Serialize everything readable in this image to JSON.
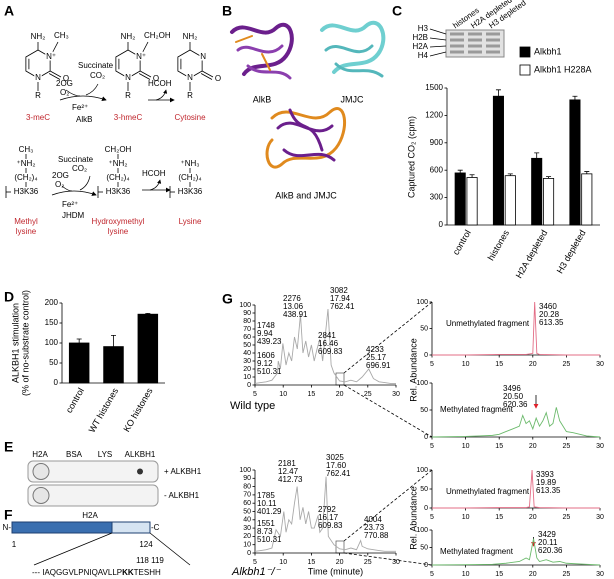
{
  "panel_labels": [
    "A",
    "B",
    "C",
    "D",
    "E",
    "F",
    "G"
  ],
  "panel_A": {
    "dna": {
      "molecules": [
        {
          "amine": "NH₂",
          "substituent": "CH₃",
          "n3": "N⁺",
          "carbonyl": "O",
          "n1": "N",
          "r": "R",
          "name": "3-meC"
        },
        {
          "amine": "NH₂",
          "substituent": "CH₂OH",
          "n3": "N⁺",
          "carbonyl": "O",
          "n1": "N",
          "r": "R",
          "name": "3-hmeC"
        },
        {
          "amine": "NH₂",
          "n3": "N",
          "carbonyl": "O",
          "n1": "N",
          "r": "R",
          "name": "Cytosine"
        }
      ],
      "reaction": {
        "cofactors": [
          "2OG",
          "O₂",
          "Succinate",
          "CO₂",
          "Fe²⁺"
        ],
        "enzyme": "AlkB"
      },
      "release": "HCOH"
    },
    "lysine": {
      "molecules": [
        {
          "groups": [
            "CH₃",
            "⁺NH₂",
            "(CH₂)₄",
            "H3K36"
          ],
          "name": [
            "Methyl",
            "lysine"
          ]
        },
        {
          "groups": [
            "CH₂OH",
            "⁺NH₂",
            "(CH₂)₄",
            "H3K36"
          ],
          "name": [
            "Hydroxymethyl",
            "lysine"
          ]
        },
        {
          "groups": [
            "⁺NH₃",
            "(CH₂)₄",
            "H3K36"
          ],
          "name": [
            "Lysine"
          ]
        }
      ],
      "reaction": {
        "cofactors": [
          "2OG",
          "O₂",
          "Succinate",
          "CO₂",
          "Fe²⁺"
        ],
        "enzyme": "JHDM"
      },
      "release": "HCOH"
    }
  },
  "panel_B": {
    "labels": [
      "AlkB",
      "JMJC",
      "AlkB and JMJC"
    ]
  },
  "panel_C_gel": {
    "lanes": [
      "histones",
      "H2A depleted",
      "H3 depleted"
    ],
    "bands": [
      "H3",
      "H2B",
      "H2A",
      "H4"
    ]
  },
  "panel_E": {
    "columns": [
      "H2A",
      "BSA",
      "LYS",
      "ALKBH1"
    ],
    "rows": [
      "+ ALKBH1",
      "- ALKBH1"
    ]
  },
  "panel_F": {
    "protein": "H2A",
    "n_term": "N-",
    "c_term": "-C",
    "start": 1,
    "end": 124,
    "sites": "118 119",
    "sequence": [
      "--- IAQGGVLPNIQAVLLP",
      "KK",
      "TESHH"
    ]
  },
  "chart_data": [
    {
      "type": "bar",
      "ylabel": "Captured CO₂ (cpm)",
      "categories": [
        "control",
        "histones",
        "H2A depleted",
        "H3 depleted"
      ],
      "series": [
        {
          "name": "Alkbh1",
          "color": "#000000",
          "values": [
            570,
            1410,
            730,
            1370
          ],
          "errors": [
            30,
            70,
            60,
            40
          ]
        },
        {
          "name": "Alkbh1 H228A",
          "color": "#ffffff",
          "values": [
            520,
            540,
            510,
            560
          ],
          "errors": [
            30,
            20,
            20,
            25
          ]
        }
      ],
      "ylim": [
        0,
        1500
      ],
      "yticks": [
        0,
        300,
        600,
        900,
        1200,
        1500
      ]
    },
    {
      "type": "bar",
      "ylabel": [
        "ALKBH1 stimulation",
        "(% of no-substrate control)"
      ],
      "categories": [
        "control",
        "WT histones",
        "KO histones"
      ],
      "series": [
        {
          "color": "#000000",
          "values": [
            100,
            91,
            172
          ],
          "errors": [
            10,
            28,
            2
          ]
        }
      ],
      "ylim": [
        0,
        200
      ],
      "yticks": [
        0,
        50,
        100,
        150,
        200
      ]
    },
    {
      "type": "line",
      "sample": "Wild type",
      "x": [
        5,
        6,
        7,
        8,
        9,
        9.12,
        9.5,
        9.94,
        10.5,
        11,
        11.5,
        12,
        12.5,
        13.06,
        13.5,
        14,
        14.5,
        15,
        15.5,
        16,
        16.46,
        17,
        17.94,
        18.5,
        19,
        20,
        21,
        22,
        23,
        24,
        25.17,
        26,
        27,
        28,
        29,
        30
      ],
      "series": [
        {
          "color": "#a9a9a9",
          "values": [
            2,
            3,
            4,
            6,
            15,
            30,
            20,
            52,
            25,
            40,
            30,
            60,
            45,
            88,
            40,
            55,
            35,
            50,
            30,
            45,
            57,
            30,
            95,
            25,
            15,
            5,
            4,
            6,
            4,
            10,
            20,
            8,
            4,
            3,
            2,
            2
          ]
        }
      ],
      "annotations": [
        [
          "1606",
          "9.12",
          "510.31"
        ],
        [
          "1748",
          "9.94",
          "439.23"
        ],
        [
          "2276",
          "13.06",
          "438.91"
        ],
        [
          "2841",
          "16.46",
          "609.83"
        ],
        [
          "3082",
          "17.94",
          "762.41"
        ],
        [
          "4233",
          "25.17",
          "696.91"
        ]
      ],
      "xlim": [
        5,
        30
      ],
      "xticks": [
        5,
        10,
        15,
        20,
        25,
        30
      ],
      "ylim": [
        0,
        100
      ],
      "yticks": [
        0,
        10,
        20,
        30,
        40,
        50,
        60,
        70,
        80,
        90,
        100
      ]
    },
    {
      "type": "line",
      "label": "Unmethylated fragment",
      "ylabel": "Rel. Abundance",
      "x": [
        5,
        10,
        15,
        19,
        20,
        20.28,
        20.6,
        21,
        25,
        30
      ],
      "series": [
        {
          "color": "#e36d86",
          "values": [
            0,
            0,
            1,
            1,
            3,
            100,
            3,
            1,
            0,
            0
          ]
        }
      ],
      "annotations": [
        [
          "3460",
          "20.28",
          "613.35"
        ]
      ],
      "xlim": [
        5,
        30
      ],
      "xticks": [
        5,
        10,
        15,
        20,
        25,
        30
      ],
      "ylim": [
        0,
        100
      ],
      "yticks": [
        0,
        50,
        100
      ]
    },
    {
      "type": "line",
      "label": "Methylated fragment",
      "x": [
        5,
        10,
        12,
        14,
        15,
        16,
        17,
        18,
        18.5,
        19,
        19.5,
        20,
        20.5,
        21,
        21.5,
        22,
        22.5,
        23,
        23.5,
        24,
        25,
        26,
        27,
        28,
        30
      ],
      "series": [
        {
          "color": "#6cba6c",
          "values": [
            0,
            1,
            2,
            3,
            5,
            10,
            15,
            20,
            40,
            25,
            30,
            15,
            35,
            20,
            30,
            45,
            20,
            25,
            55,
            30,
            10,
            8,
            5,
            2,
            0
          ]
        }
      ],
      "annotations": [
        [
          "3496",
          "20.50",
          "620.36"
        ]
      ],
      "xlim": [
        5,
        30
      ],
      "xticks": [
        5,
        10,
        15,
        20,
        25,
        30
      ],
      "ylim": [
        0,
        100
      ],
      "yticks": [
        0,
        50,
        100
      ]
    },
    {
      "type": "line",
      "sample": "Alkbh1⁻/⁻",
      "xlabel": "Time (minute)",
      "x": [
        5,
        6,
        7,
        8,
        8.73,
        9.5,
        10.11,
        10.5,
        11,
        11.5,
        12,
        12.47,
        13,
        13.5,
        14,
        14.5,
        15,
        15.5,
        16.17,
        16.5,
        17,
        17.6,
        18,
        19,
        20,
        21,
        22,
        23,
        23.73,
        24,
        25,
        26,
        27,
        28,
        29,
        30
      ],
      "series": [
        {
          "color": "#a9a9a9",
          "values": [
            2,
            3,
            4,
            6,
            28,
            20,
            50,
            25,
            40,
            35,
            60,
            80,
            40,
            55,
            35,
            50,
            30,
            30,
            45,
            25,
            30,
            92,
            20,
            10,
            5,
            4,
            6,
            4,
            15,
            8,
            5,
            4,
            3,
            2,
            2,
            2
          ]
        }
      ],
      "annotations": [
        [
          "1551",
          "8.73",
          "510.31"
        ],
        [
          "1785",
          "10.11",
          "401.29"
        ],
        [
          "2181",
          "12.47",
          "412.73"
        ],
        [
          "2792",
          "16.17",
          "609.83"
        ],
        [
          "3025",
          "17.60",
          "762.41"
        ],
        [
          "4004",
          "23.73",
          "770.88"
        ]
      ],
      "xlim": [
        5,
        30
      ],
      "xticks": [
        5,
        10,
        15,
        20,
        25,
        30
      ],
      "ylim": [
        0,
        100
      ],
      "yticks": [
        0,
        10,
        20,
        30,
        40,
        50,
        60,
        70,
        80,
        90,
        100
      ]
    },
    {
      "type": "line",
      "label": "Unmethylated fragment",
      "ylabel": "Rel. Abundance",
      "x": [
        5,
        10,
        15,
        19,
        19.5,
        19.89,
        20.2,
        21,
        25,
        30
      ],
      "series": [
        {
          "color": "#e36d86",
          "values": [
            0,
            0,
            1,
            1,
            3,
            100,
            3,
            1,
            0,
            0
          ]
        }
      ],
      "annotations": [
        [
          "3393",
          "19.89",
          "613.35"
        ]
      ],
      "xlim": [
        5,
        30
      ],
      "xticks": [
        5,
        10,
        15,
        20,
        25,
        30
      ],
      "ylim": [
        0,
        100
      ],
      "yticks": [
        0,
        50,
        100
      ]
    },
    {
      "type": "line",
      "label": "Methylated fragment",
      "x": [
        5,
        10,
        14,
        16,
        18,
        19,
        19.5,
        20.11,
        20.6,
        21,
        22,
        23,
        24,
        25,
        28,
        30
      ],
      "series": [
        {
          "color": "#6cba6c",
          "values": [
            0,
            1,
            2,
            5,
            10,
            20,
            15,
            75,
            20,
            10,
            15,
            8,
            10,
            5,
            2,
            0
          ]
        }
      ],
      "annotations": [
        [
          "3429",
          "20.11",
          "620.36"
        ]
      ],
      "xlim": [
        5,
        30
      ],
      "xticks": [
        5,
        10,
        15,
        20,
        25,
        30
      ],
      "ylim": [
        0,
        100
      ],
      "yticks": [
        0,
        50,
        100
      ]
    }
  ]
}
